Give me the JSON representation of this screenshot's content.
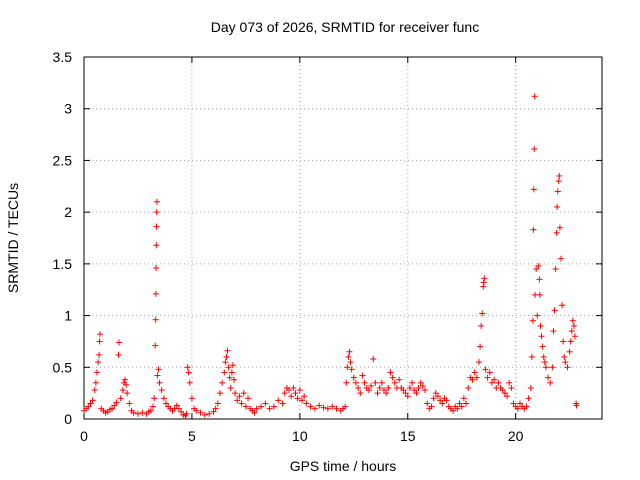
{
  "chart_data": {
    "type": "scatter",
    "title": "Day 073 of 2026, SRMTID for receiver func",
    "xlabel": "GPS time / hours",
    "ylabel": "SRMTID / TECUs",
    "xlim": [
      0,
      24
    ],
    "ylim": [
      0,
      3.5
    ],
    "xticks": [
      0,
      5,
      10,
      15,
      20
    ],
    "xtick_labels": [
      "0",
      "5",
      "10",
      "15",
      "20"
    ],
    "yticks": [
      0,
      0.5,
      1,
      1.5,
      2,
      2.5,
      3,
      3.5
    ],
    "ytick_labels": [
      "0",
      "0.5",
      "1",
      "1.5",
      "2",
      "2.5",
      "3",
      "3.5"
    ],
    "grid": true,
    "marker": "+",
    "color": "#ff0000",
    "series": [
      {
        "name": "SRMTID",
        "points": [
          [
            0.0,
            0.08
          ],
          [
            0.1,
            0.1
          ],
          [
            0.2,
            0.12
          ],
          [
            0.3,
            0.15
          ],
          [
            0.4,
            0.18
          ],
          [
            0.5,
            0.28
          ],
          [
            0.55,
            0.35
          ],
          [
            0.6,
            0.45
          ],
          [
            0.65,
            0.55
          ],
          [
            0.7,
            0.62
          ],
          [
            0.72,
            0.75
          ],
          [
            0.74,
            0.82
          ],
          [
            0.8,
            0.1
          ],
          [
            0.9,
            0.08
          ],
          [
            1.0,
            0.06
          ],
          [
            1.1,
            0.07
          ],
          [
            1.2,
            0.09
          ],
          [
            1.3,
            0.1
          ],
          [
            1.4,
            0.13
          ],
          [
            1.5,
            0.16
          ],
          [
            1.6,
            0.62
          ],
          [
            1.62,
            0.74
          ],
          [
            1.7,
            0.2
          ],
          [
            1.8,
            0.28
          ],
          [
            1.85,
            0.35
          ],
          [
            1.9,
            0.38
          ],
          [
            1.95,
            0.33
          ],
          [
            2.0,
            0.25
          ],
          [
            2.1,
            0.15
          ],
          [
            2.2,
            0.08
          ],
          [
            2.3,
            0.06
          ],
          [
            2.5,
            0.05
          ],
          [
            2.7,
            0.06
          ],
          [
            2.9,
            0.05
          ],
          [
            3.0,
            0.07
          ],
          [
            3.1,
            0.08
          ],
          [
            3.2,
            0.12
          ],
          [
            3.25,
            0.2
          ],
          [
            3.3,
            0.71
          ],
          [
            3.32,
            0.96
          ],
          [
            3.33,
            1.21
          ],
          [
            3.34,
            1.46
          ],
          [
            3.35,
            1.68
          ],
          [
            3.36,
            1.86
          ],
          [
            3.37,
            2.0
          ],
          [
            3.38,
            2.1
          ],
          [
            3.4,
            0.42
          ],
          [
            3.45,
            0.48
          ],
          [
            3.5,
            0.35
          ],
          [
            3.6,
            0.28
          ],
          [
            3.7,
            0.2
          ],
          [
            3.8,
            0.15
          ],
          [
            3.9,
            0.12
          ],
          [
            4.0,
            0.1
          ],
          [
            4.1,
            0.08
          ],
          [
            4.2,
            0.1
          ],
          [
            4.3,
            0.13
          ],
          [
            4.4,
            0.1
          ],
          [
            4.5,
            0.07
          ],
          [
            4.6,
            0.04
          ],
          [
            4.7,
            0.03
          ],
          [
            4.75,
            0.05
          ],
          [
            4.8,
            0.5
          ],
          [
            4.85,
            0.45
          ],
          [
            4.9,
            0.35
          ],
          [
            5.0,
            0.2
          ],
          [
            5.1,
            0.1
          ],
          [
            5.2,
            0.08
          ],
          [
            5.4,
            0.06
          ],
          [
            5.6,
            0.04
          ],
          [
            5.8,
            0.05
          ],
          [
            6.0,
            0.07
          ],
          [
            6.1,
            0.1
          ],
          [
            6.2,
            0.15
          ],
          [
            6.3,
            0.25
          ],
          [
            6.4,
            0.35
          ],
          [
            6.5,
            0.45
          ],
          [
            6.55,
            0.55
          ],
          [
            6.6,
            0.6
          ],
          [
            6.65,
            0.66
          ],
          [
            6.7,
            0.5
          ],
          [
            6.75,
            0.4
          ],
          [
            6.8,
            0.3
          ],
          [
            6.85,
            0.45
          ],
          [
            6.9,
            0.52
          ],
          [
            6.95,
            0.38
          ],
          [
            7.0,
            0.25
          ],
          [
            7.1,
            0.18
          ],
          [
            7.2,
            0.22
          ],
          [
            7.3,
            0.15
          ],
          [
            7.4,
            0.25
          ],
          [
            7.5,
            0.12
          ],
          [
            7.6,
            0.2
          ],
          [
            7.7,
            0.1
          ],
          [
            7.8,
            0.08
          ],
          [
            7.9,
            0.06
          ],
          [
            8.0,
            0.1
          ],
          [
            8.2,
            0.12
          ],
          [
            8.4,
            0.15
          ],
          [
            8.6,
            0.1
          ],
          [
            8.8,
            0.12
          ],
          [
            9.0,
            0.18
          ],
          [
            9.2,
            0.15
          ],
          [
            9.3,
            0.25
          ],
          [
            9.4,
            0.3
          ],
          [
            9.5,
            0.28
          ],
          [
            9.6,
            0.22
          ],
          [
            9.7,
            0.3
          ],
          [
            9.8,
            0.25
          ],
          [
            9.9,
            0.2
          ],
          [
            10.0,
            0.28
          ],
          [
            10.1,
            0.18
          ],
          [
            10.2,
            0.22
          ],
          [
            10.3,
            0.15
          ],
          [
            10.5,
            0.12
          ],
          [
            10.7,
            0.1
          ],
          [
            10.9,
            0.13
          ],
          [
            11.1,
            0.11
          ],
          [
            11.3,
            0.1
          ],
          [
            11.5,
            0.12
          ],
          [
            11.7,
            0.1
          ],
          [
            11.9,
            0.08
          ],
          [
            12.0,
            0.1
          ],
          [
            12.1,
            0.12
          ],
          [
            12.15,
            0.35
          ],
          [
            12.2,
            0.5
          ],
          [
            12.25,
            0.6
          ],
          [
            12.3,
            0.65
          ],
          [
            12.35,
            0.55
          ],
          [
            12.4,
            0.48
          ],
          [
            12.5,
            0.4
          ],
          [
            12.6,
            0.35
          ],
          [
            12.7,
            0.3
          ],
          [
            12.8,
            0.25
          ],
          [
            12.9,
            0.42
          ],
          [
            13.0,
            0.35
          ],
          [
            13.1,
            0.3
          ],
          [
            13.2,
            0.28
          ],
          [
            13.3,
            0.32
          ],
          [
            13.4,
            0.58
          ],
          [
            13.5,
            0.35
          ],
          [
            13.6,
            0.25
          ],
          [
            13.7,
            0.3
          ],
          [
            13.8,
            0.35
          ],
          [
            13.9,
            0.28
          ],
          [
            14.0,
            0.25
          ],
          [
            14.1,
            0.3
          ],
          [
            14.2,
            0.45
          ],
          [
            14.3,
            0.4
          ],
          [
            14.4,
            0.35
          ],
          [
            14.5,
            0.3
          ],
          [
            14.6,
            0.38
          ],
          [
            14.7,
            0.3
          ],
          [
            14.8,
            0.28
          ],
          [
            14.9,
            0.25
          ],
          [
            15.0,
            0.22
          ],
          [
            15.1,
            0.3
          ],
          [
            15.2,
            0.35
          ],
          [
            15.3,
            0.28
          ],
          [
            15.4,
            0.25
          ],
          [
            15.5,
            0.3
          ],
          [
            15.6,
            0.35
          ],
          [
            15.7,
            0.32
          ],
          [
            15.8,
            0.28
          ],
          [
            15.9,
            0.15
          ],
          [
            16.0,
            0.1
          ],
          [
            16.1,
            0.12
          ],
          [
            16.2,
            0.2
          ],
          [
            16.3,
            0.25
          ],
          [
            16.4,
            0.22
          ],
          [
            16.5,
            0.18
          ],
          [
            16.6,
            0.15
          ],
          [
            16.7,
            0.2
          ],
          [
            16.8,
            0.18
          ],
          [
            16.9,
            0.12
          ],
          [
            17.0,
            0.1
          ],
          [
            17.1,
            0.08
          ],
          [
            17.2,
            0.12
          ],
          [
            17.3,
            0.1
          ],
          [
            17.4,
            0.15
          ],
          [
            17.5,
            0.12
          ],
          [
            17.6,
            0.2
          ],
          [
            17.7,
            0.15
          ],
          [
            17.8,
            0.3
          ],
          [
            17.9,
            0.4
          ],
          [
            18.0,
            0.38
          ],
          [
            18.1,
            0.45
          ],
          [
            18.2,
            0.4
          ],
          [
            18.3,
            0.55
          ],
          [
            18.35,
            0.7
          ],
          [
            18.4,
            0.9
          ],
          [
            18.45,
            1.02
          ],
          [
            18.5,
            1.28
          ],
          [
            18.52,
            1.32
          ],
          [
            18.55,
            1.36
          ],
          [
            18.6,
            0.48
          ],
          [
            18.7,
            0.4
          ],
          [
            18.8,
            0.45
          ],
          [
            18.9,
            0.35
          ],
          [
            19.0,
            0.38
          ],
          [
            19.1,
            0.3
          ],
          [
            19.2,
            0.35
          ],
          [
            19.3,
            0.3
          ],
          [
            19.4,
            0.28
          ],
          [
            19.5,
            0.25
          ],
          [
            19.6,
            0.22
          ],
          [
            19.7,
            0.35
          ],
          [
            19.8,
            0.3
          ],
          [
            19.9,
            0.15
          ],
          [
            20.0,
            0.12
          ],
          [
            20.1,
            0.1
          ],
          [
            20.2,
            0.15
          ],
          [
            20.3,
            0.12
          ],
          [
            20.4,
            0.1
          ],
          [
            20.5,
            0.12
          ],
          [
            20.6,
            0.2
          ],
          [
            20.7,
            0.3
          ],
          [
            20.75,
            0.6
          ],
          [
            20.8,
            0.95
          ],
          [
            20.82,
            1.83
          ],
          [
            20.84,
            2.22
          ],
          [
            20.86,
            2.61
          ],
          [
            20.88,
            3.12
          ],
          [
            20.9,
            1.2
          ],
          [
            20.95,
            1.45
          ],
          [
            21.0,
            1.0
          ],
          [
            21.05,
            1.48
          ],
          [
            21.1,
            1.35
          ],
          [
            21.12,
            1.2
          ],
          [
            21.15,
            0.9
          ],
          [
            21.2,
            0.8
          ],
          [
            21.25,
            0.7
          ],
          [
            21.3,
            0.6
          ],
          [
            21.35,
            0.55
          ],
          [
            21.4,
            0.5
          ],
          [
            21.5,
            0.4
          ],
          [
            21.6,
            0.35
          ],
          [
            21.7,
            0.5
          ],
          [
            21.75,
            0.85
          ],
          [
            21.8,
            1.05
          ],
          [
            21.85,
            1.45
          ],
          [
            21.9,
            1.8
          ],
          [
            21.92,
            2.05
          ],
          [
            21.95,
            2.2
          ],
          [
            22.0,
            2.3
          ],
          [
            22.02,
            2.35
          ],
          [
            22.05,
            1.85
          ],
          [
            22.1,
            1.55
          ],
          [
            22.15,
            1.1
          ],
          [
            22.2,
            0.75
          ],
          [
            22.25,
            0.6
          ],
          [
            22.3,
            0.55
          ],
          [
            22.4,
            0.5
          ],
          [
            22.5,
            0.65
          ],
          [
            22.55,
            0.75
          ],
          [
            22.6,
            0.85
          ],
          [
            22.65,
            0.95
          ],
          [
            22.7,
            0.9
          ],
          [
            22.75,
            0.8
          ],
          [
            22.8,
            0.15
          ],
          [
            22.82,
            0.13
          ]
        ]
      }
    ]
  }
}
